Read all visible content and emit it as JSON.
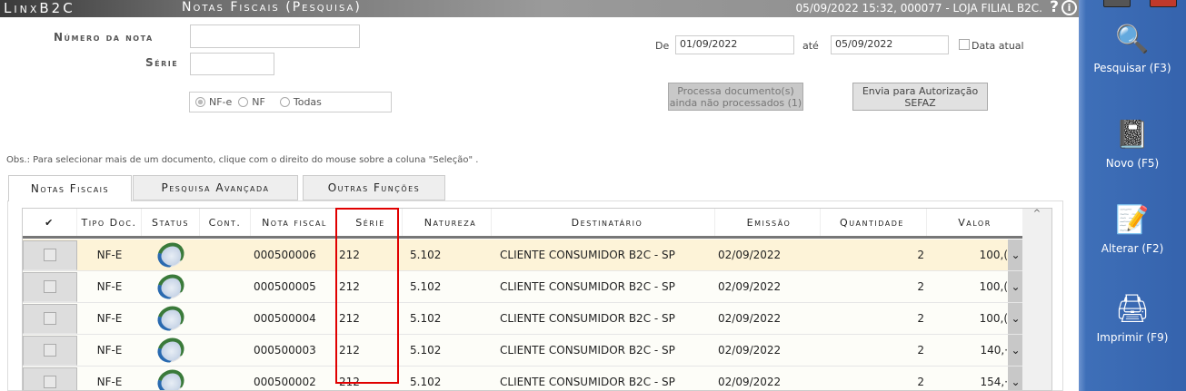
{
  "titlebar": {
    "brand": "LinxB2C",
    "title": "Notas Fiscais (Pesquisa)",
    "info": "05/09/2022 15:32, 000077 - LOJA FILIAL B2C.",
    "help": "?",
    "info_icon": "i"
  },
  "form": {
    "numero_label": "Número da nota",
    "numero_value": "",
    "serie_label": "Série",
    "serie_value": "",
    "radio_options": [
      "NF-e",
      "NF",
      "Todas"
    ],
    "radio_selected": "NF-e",
    "de_label": "De",
    "de_value": "01/09/2022",
    "ate_label": "até",
    "ate_value": "05/09/2022",
    "data_atual_label": "Data atual",
    "data_atual_checked": false,
    "processa_button": "Processa documento(s) ainda não processados (1)",
    "envia_button": "Envia para Autorização SEFAZ",
    "obs": "Obs.: Para selecionar mais de um documento, clique com o direito do mouse sobre a coluna \"Seleção\" ."
  },
  "tabs": [
    {
      "label": "Notas Fiscais",
      "active": true
    },
    {
      "label": "Pesquisa Avançada"
    },
    {
      "label": "Outras Funções"
    }
  ],
  "table": {
    "columns": [
      "✔",
      "Tipo Doc.",
      "Status",
      "Cont.",
      "Nota fiscal",
      "Série",
      "Natureza",
      "Destinatário",
      "Emissão",
      "Quantidade",
      "Valor"
    ],
    "rows": [
      {
        "tipo": "NF-E",
        "nota": "000500006",
        "serie": "212",
        "natureza": "5.102",
        "destinatario": "CLIENTE CONSUMIDOR B2C - SP",
        "emissao": "02/09/2022",
        "quantidade": "2",
        "valor": "100,(",
        "selected": true
      },
      {
        "tipo": "NF-E",
        "nota": "000500005",
        "serie": "212",
        "natureza": "5.102",
        "destinatario": "CLIENTE CONSUMIDOR B2C - SP",
        "emissao": "02/09/2022",
        "quantidade": "2",
        "valor": "100,("
      },
      {
        "tipo": "NF-E",
        "nota": "000500004",
        "serie": "212",
        "natureza": "5.102",
        "destinatario": "CLIENTE CONSUMIDOR B2C - SP",
        "emissao": "02/09/2022",
        "quantidade": "2",
        "valor": "100,("
      },
      {
        "tipo": "NF-E",
        "nota": "000500003",
        "serie": "212",
        "natureza": "5.102",
        "destinatario": "CLIENTE CONSUMIDOR B2C - SP",
        "emissao": "02/09/2022",
        "quantidade": "2",
        "valor": "140,·"
      },
      {
        "tipo": "NF-E",
        "nota": "000500002",
        "serie": "212",
        "natureza": "5.102",
        "destinatario": "CLIENTE CONSUMIDOR B2C - SP",
        "emissao": "02/09/2022",
        "quantidade": "2",
        "valor": "154,·"
      }
    ]
  },
  "sidebar": [
    {
      "label": "Pesquisar (F3)",
      "icon": "magnifier-icon"
    },
    {
      "label": "Novo (F5)",
      "icon": "notebook-icon"
    },
    {
      "label": "Alterar (F2)",
      "icon": "edit-document-icon"
    },
    {
      "label": "Imprimir (F9)",
      "icon": "printer-icon"
    }
  ],
  "colors": {
    "sidebar": "#3563ad",
    "selected_row": "#fdf3d8",
    "highlight": "#e00000"
  }
}
